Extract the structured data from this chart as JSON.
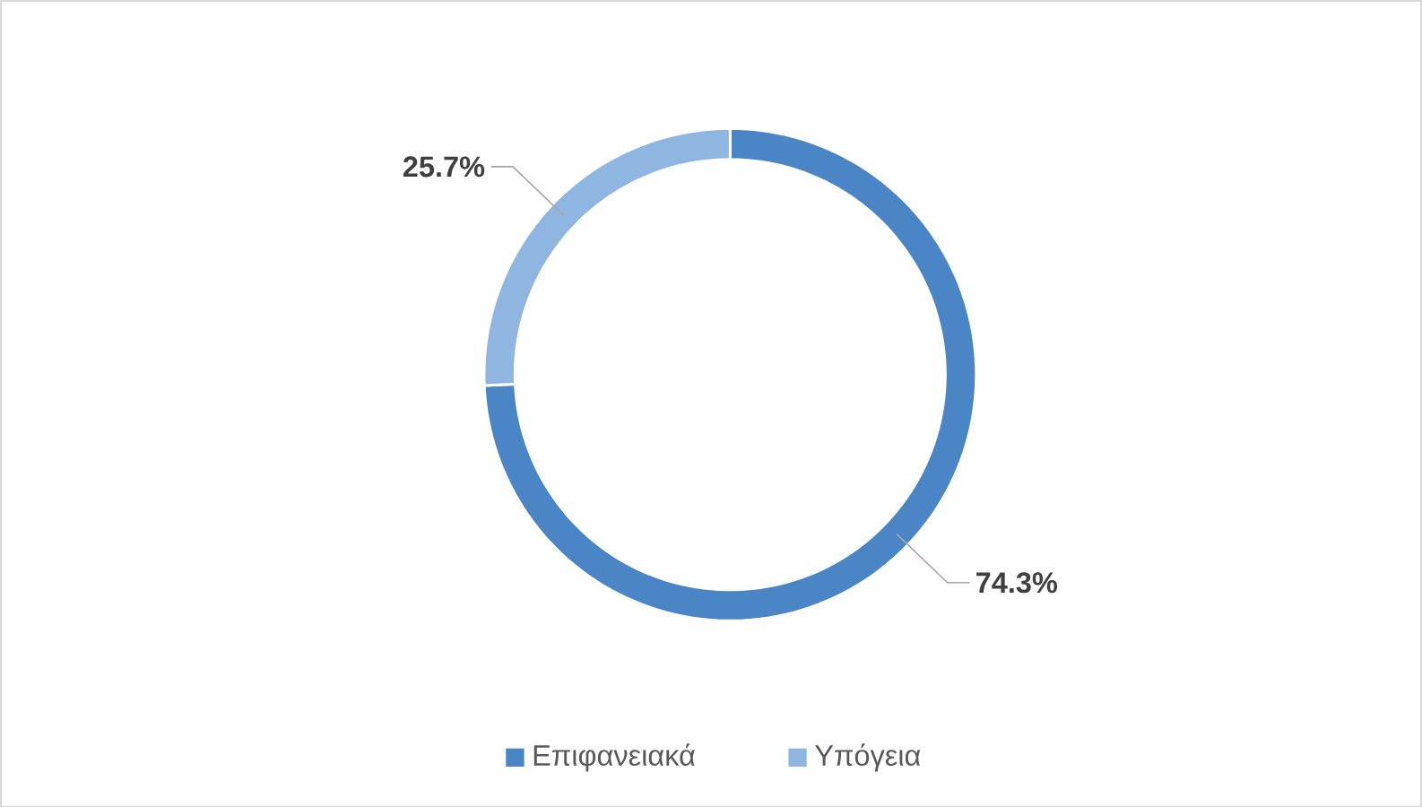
{
  "chart_data": {
    "type": "donut",
    "categories": [
      "Επιφανειακά",
      "Υπόγεια"
    ],
    "values": [
      74.3,
      25.7
    ],
    "colors": [
      "#4a86c6",
      "#8fb6e0"
    ],
    "value_labels": [
      "74.3%",
      "25.7%"
    ],
    "legend": "bottom"
  }
}
